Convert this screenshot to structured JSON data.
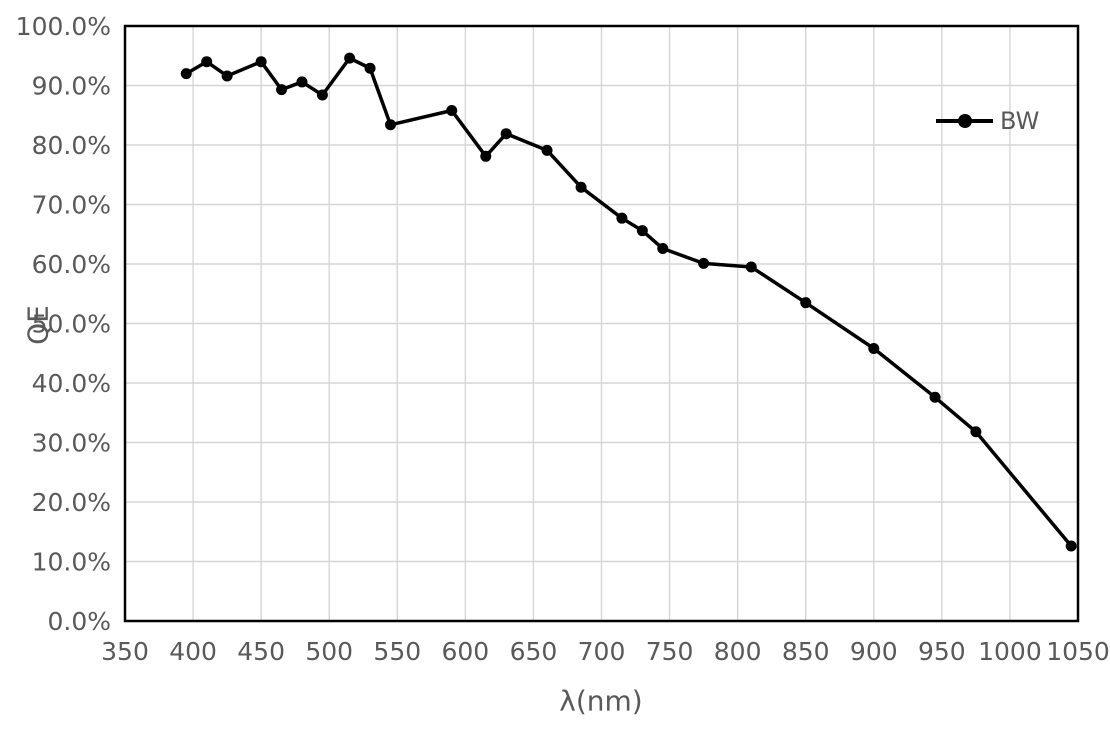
{
  "figure": {
    "background": "#ffffff"
  },
  "legend": {
    "label": "BW",
    "position": "inside-top-right"
  },
  "style": {
    "gridline_color": "#d6d6d6",
    "plot_border_color": "#000000",
    "tick_label_color": "#595959",
    "axis_title_color": "#595959",
    "series_color": "#000000",
    "tick_font_size": 25,
    "marker_radius": 5.5,
    "line_width": 3.5
  },
  "chart_data": {
    "type": "line",
    "title": "",
    "xlabel": "λ(nm)",
    "ylabel": "QE",
    "xlim": [
      350,
      1050
    ],
    "ylim": [
      0,
      100
    ],
    "grid": true,
    "legend_position": "inside-top-right",
    "x_tick_values": [
      350,
      400,
      450,
      500,
      550,
      600,
      650,
      700,
      750,
      800,
      850,
      900,
      950,
      1000,
      1050
    ],
    "x_tick_labels": [
      "350",
      "400",
      "450",
      "500",
      "550",
      "600",
      "650",
      "700",
      "750",
      "800",
      "850",
      "900",
      "950",
      "1000",
      "1050"
    ],
    "y_tick_values": [
      0,
      10,
      20,
      30,
      40,
      50,
      60,
      70,
      80,
      90,
      100
    ],
    "y_tick_labels": [
      "0.0%",
      "10.0%",
      "20.0%",
      "30.0%",
      "40.0%",
      "50.0%",
      "60.0%",
      "70.0%",
      "80.0%",
      "90.0%",
      "100.0%"
    ],
    "series": [
      {
        "name": "BW",
        "color": "#000000",
        "marker": "circle",
        "x": [
          395,
          410,
          425,
          450,
          465,
          480,
          495,
          515,
          530,
          545,
          590,
          615,
          630,
          660,
          685,
          715,
          730,
          745,
          775,
          810,
          850,
          900,
          945,
          975,
          1045
        ],
        "y": [
          92.0,
          94.0,
          91.6,
          94.0,
          89.3,
          90.6,
          88.4,
          94.6,
          92.9,
          83.4,
          85.8,
          78.1,
          81.9,
          79.1,
          72.9,
          67.7,
          65.6,
          62.6,
          60.1,
          59.5,
          53.5,
          45.8,
          37.6,
          31.8,
          12.6
        ]
      }
    ]
  }
}
